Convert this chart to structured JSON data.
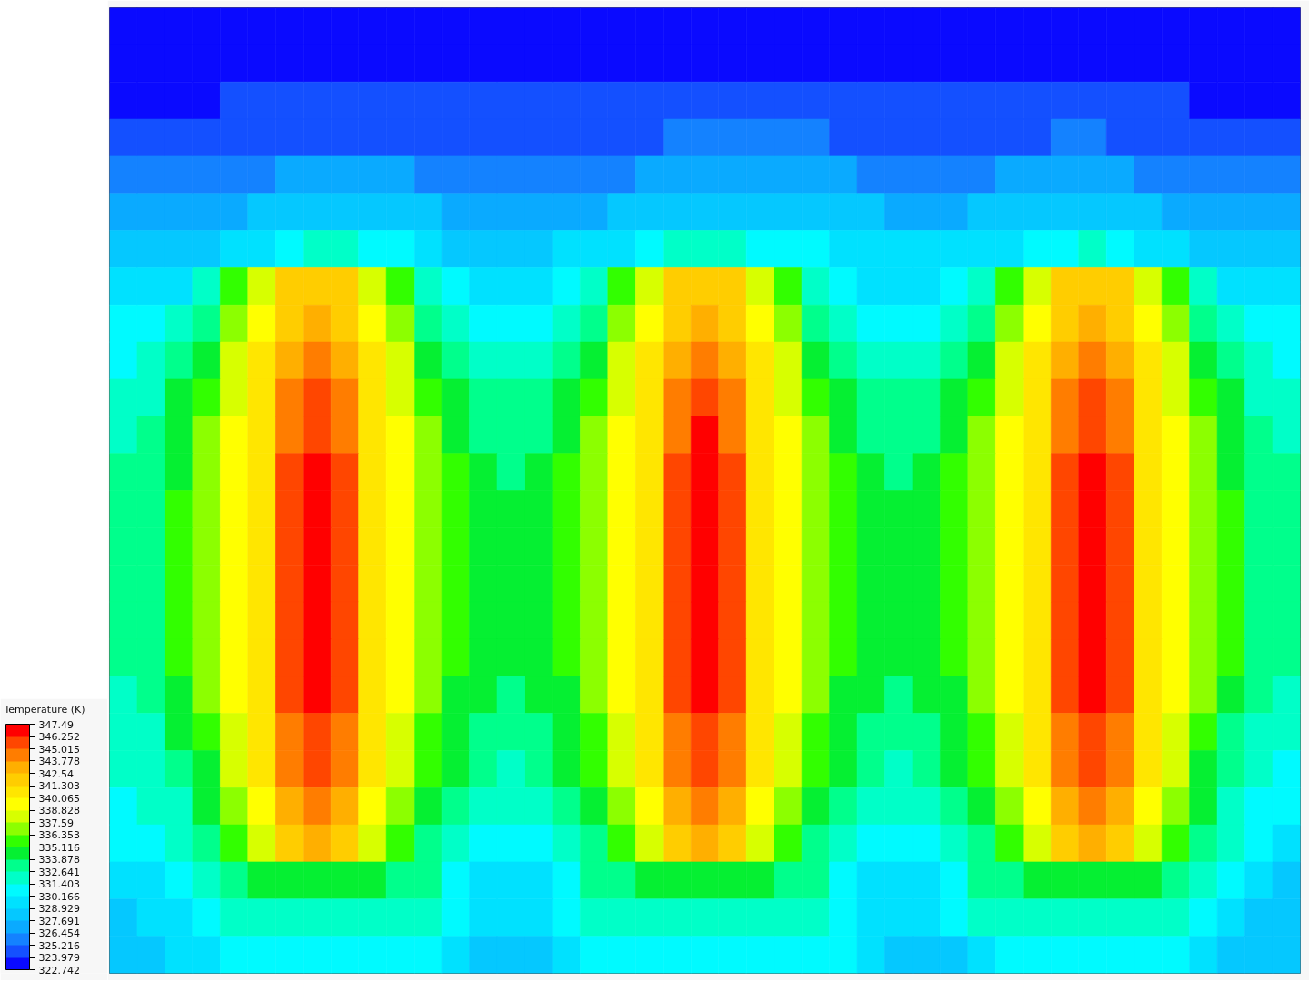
{
  "chart_data": {
    "type": "heatmap",
    "clabel": "Temperature (K)",
    "tick_labels": false,
    "categories": [
      null,
      null,
      null,
      null,
      null,
      null,
      null,
      null,
      null,
      null,
      null,
      null,
      null,
      null,
      null,
      null,
      null,
      null,
      null,
      null,
      null,
      null,
      null,
      null,
      null,
      null,
      null,
      null,
      null,
      null,
      null,
      null,
      null,
      null,
      null,
      null,
      null,
      null,
      null,
      null,
      null,
      null,
      null
    ],
    "y_categories": [
      null,
      null,
      null,
      null,
      null,
      null,
      null,
      null,
      null,
      null,
      null,
      null,
      null,
      null,
      null,
      null,
      null,
      null,
      null,
      null,
      null,
      null,
      null,
      null,
      null,
      null
    ],
    "clim": [
      322.742,
      347.49
    ],
    "cticks": [
      322.742,
      323.979,
      325.216,
      326.454,
      327.691,
      328.929,
      330.166,
      331.403,
      332.641,
      333.878,
      335.116,
      336.353,
      337.59,
      338.828,
      340.065,
      341.303,
      342.54,
      343.778,
      345.015,
      346.252,
      347.49
    ],
    "colors": [
      "#0a0aff",
      "#1450ff",
      "#1482ff",
      "#0aaaff",
      "#05c8ff",
      "#00e1ff",
      "#00faff",
      "#00ffc8",
      "#00ff8c",
      "#05f032",
      "#32ff00",
      "#8cff00",
      "#d7ff00",
      "#ffff00",
      "#ffe600",
      "#ffcd00",
      "#ffaf00",
      "#ff7d00",
      "#ff4600",
      "#ff0000"
    ],
    "cells": [
      [
        323.4,
        323.4,
        323.4,
        323.4,
        323.4,
        323.4,
        323.4,
        323.4,
        323.4,
        323.4,
        323.4,
        323.4,
        323.4,
        323.4,
        323.4,
        323.4,
        323.4,
        323.4,
        323.4,
        323.4,
        323.4,
        323.4,
        323.4,
        323.4,
        323.4,
        323.4,
        323.4,
        323.4,
        323.4,
        323.4,
        323.4,
        323.4,
        323.4,
        323.4,
        323.4,
        323.4,
        323.4,
        323.4,
        323.4,
        323.4,
        323.4,
        323.4,
        323.4
      ],
      [
        323.4,
        323.4,
        323.4,
        323.4,
        323.4,
        323.4,
        323.4,
        323.4,
        323.4,
        323.4,
        323.4,
        323.4,
        323.4,
        323.4,
        323.4,
        323.4,
        323.4,
        323.4,
        323.4,
        323.4,
        323.4,
        323.4,
        323.4,
        323.4,
        323.4,
        323.4,
        323.4,
        323.4,
        323.4,
        323.4,
        323.4,
        323.4,
        323.4,
        323.4,
        323.4,
        323.4,
        323.4,
        323.4,
        323.4,
        323.4,
        323.4,
        323.4,
        323.4
      ],
      [
        323.4,
        323.4,
        323.4,
        323.4,
        324.6,
        324.6,
        324.6,
        324.6,
        324.6,
        324.6,
        324.6,
        324.6,
        324.6,
        324.6,
        324.6,
        324.6,
        324.6,
        324.6,
        324.6,
        324.6,
        324.6,
        324.6,
        324.6,
        324.6,
        324.6,
        324.6,
        324.6,
        324.6,
        324.6,
        324.6,
        324.6,
        324.6,
        324.6,
        324.6,
        324.6,
        324.6,
        324.6,
        324.6,
        324.6,
        323.4,
        323.4,
        323.4,
        323.4
      ],
      [
        324.6,
        324.6,
        324.6,
        324.6,
        324.6,
        324.6,
        324.6,
        324.6,
        324.6,
        324.6,
        324.6,
        324.6,
        324.6,
        324.6,
        324.6,
        324.6,
        324.6,
        324.6,
        324.6,
        324.6,
        325.8,
        325.8,
        325.8,
        325.8,
        325.8,
        325.8,
        324.6,
        324.6,
        324.6,
        324.6,
        324.6,
        324.6,
        324.6,
        324.6,
        325.8,
        325.8,
        324.6,
        324.6,
        324.6,
        324.6,
        324.6,
        324.6,
        324.6
      ],
      [
        325.8,
        325.8,
        325.8,
        325.8,
        325.8,
        325.8,
        327.1,
        327.1,
        327.1,
        327.1,
        327.1,
        325.8,
        325.8,
        325.8,
        325.8,
        325.8,
        325.8,
        325.8,
        325.8,
        327.1,
        327.1,
        327.1,
        327.1,
        327.1,
        327.1,
        327.1,
        327.1,
        325.8,
        325.8,
        325.8,
        325.8,
        325.8,
        327.1,
        327.1,
        327.1,
        327.1,
        327.1,
        325.8,
        325.8,
        325.8,
        325.8,
        325.8,
        325.8
      ],
      [
        327.1,
        327.1,
        327.1,
        327.1,
        327.1,
        328.3,
        328.3,
        328.3,
        328.3,
        328.3,
        328.3,
        328.3,
        327.1,
        327.1,
        327.1,
        327.1,
        327.1,
        327.1,
        328.3,
        328.3,
        328.3,
        328.3,
        328.3,
        328.3,
        328.3,
        328.3,
        328.3,
        328.3,
        327.1,
        327.1,
        327.1,
        328.3,
        328.3,
        328.3,
        328.3,
        328.3,
        328.3,
        328.3,
        327.1,
        327.1,
        327.1,
        327.1,
        327.1
      ],
      [
        328.3,
        328.3,
        328.3,
        328.3,
        329.5,
        329.5,
        330.8,
        332,
        332,
        330.8,
        330.8,
        329.5,
        328.3,
        328.3,
        328.3,
        328.3,
        329.5,
        329.5,
        329.5,
        330.8,
        332,
        332,
        332,
        330.8,
        330.8,
        330.8,
        329.5,
        329.5,
        329.5,
        329.5,
        329.5,
        329.5,
        329.5,
        330.8,
        330.8,
        332,
        330.8,
        329.5,
        329.5,
        328.3,
        328.3,
        328.3,
        328.3
      ],
      [
        329.5,
        329.5,
        329.5,
        332,
        335.7,
        338.2,
        341.9,
        341.9,
        341.9,
        338.2,
        335.7,
        332,
        330.8,
        329.5,
        329.5,
        329.5,
        330.8,
        332,
        335.7,
        338.2,
        341.9,
        341.9,
        341.9,
        338.2,
        335.7,
        332,
        330.8,
        329.5,
        329.5,
        329.5,
        330.8,
        332,
        335.7,
        338.2,
        341.9,
        341.9,
        341.9,
        338.2,
        335.7,
        332,
        329.5,
        329.5,
        329.5
      ],
      [
        330.8,
        330.8,
        332,
        333.3,
        337,
        339.4,
        341.9,
        343.2,
        341.9,
        339.4,
        337,
        333.3,
        332,
        330.8,
        330.8,
        330.8,
        332,
        333.3,
        337,
        339.4,
        341.9,
        343.2,
        341.9,
        339.4,
        337,
        333.3,
        332,
        330.8,
        330.8,
        330.8,
        332,
        333.3,
        337,
        339.4,
        341.9,
        343.2,
        341.9,
        339.4,
        337,
        333.3,
        332,
        330.8,
        330.8
      ],
      [
        330.8,
        332,
        333.3,
        334.5,
        338.2,
        340.7,
        343.2,
        344.4,
        343.2,
        340.7,
        338.2,
        334.5,
        333.3,
        332,
        332,
        332,
        333.3,
        334.5,
        338.2,
        340.7,
        343.2,
        344.4,
        343.2,
        340.7,
        338.2,
        334.5,
        333.3,
        332,
        332,
        332,
        333.3,
        334.5,
        338.2,
        340.7,
        343.2,
        344.4,
        343.2,
        340.7,
        338.2,
        334.5,
        333.3,
        332,
        330.8
      ],
      [
        332,
        332,
        334.5,
        335.7,
        338.2,
        340.7,
        344.4,
        345.6,
        344.4,
        340.7,
        338.2,
        335.7,
        334.5,
        333.3,
        333.3,
        333.3,
        334.5,
        335.7,
        338.2,
        340.7,
        344.4,
        345.6,
        344.4,
        340.7,
        338.2,
        335.7,
        334.5,
        333.3,
        333.3,
        333.3,
        334.5,
        335.7,
        338.2,
        340.7,
        344.4,
        345.6,
        344.4,
        340.7,
        338.2,
        335.7,
        334.5,
        332,
        332
      ],
      [
        332,
        333.3,
        334.5,
        337,
        339.4,
        340.7,
        344.4,
        345.6,
        344.4,
        340.7,
        339.4,
        337,
        334.5,
        333.3,
        333.3,
        333.3,
        334.5,
        337,
        339.4,
        340.7,
        344.4,
        346.9,
        344.4,
        340.7,
        339.4,
        337,
        334.5,
        333.3,
        333.3,
        333.3,
        334.5,
        337,
        339.4,
        340.7,
        344.4,
        345.6,
        344.4,
        340.7,
        339.4,
        337,
        334.5,
        333.3,
        332
      ],
      [
        333.3,
        333.3,
        334.5,
        337,
        339.4,
        340.7,
        345.6,
        346.9,
        345.6,
        340.7,
        339.4,
        337,
        335.7,
        334.5,
        333.3,
        334.5,
        335.7,
        337,
        339.4,
        340.7,
        345.6,
        346.9,
        345.6,
        340.7,
        339.4,
        337,
        335.7,
        334.5,
        333.3,
        334.5,
        335.7,
        337,
        339.4,
        340.7,
        345.6,
        346.9,
        345.6,
        340.7,
        339.4,
        337,
        334.5,
        333.3,
        333.3
      ],
      [
        333.3,
        333.3,
        335.7,
        337,
        339.4,
        340.7,
        345.6,
        346.9,
        345.6,
        340.7,
        339.4,
        337,
        335.7,
        334.5,
        334.5,
        334.5,
        335.7,
        337,
        339.4,
        340.7,
        345.6,
        346.9,
        345.6,
        340.7,
        339.4,
        337,
        335.7,
        334.5,
        334.5,
        334.5,
        335.7,
        337,
        339.4,
        340.7,
        345.6,
        346.9,
        345.6,
        340.7,
        339.4,
        337,
        335.7,
        333.3,
        333.3
      ],
      [
        333.3,
        333.3,
        335.7,
        337,
        339.4,
        340.7,
        345.6,
        346.9,
        345.6,
        340.7,
        339.4,
        337,
        335.7,
        334.5,
        334.5,
        334.5,
        335.7,
        337,
        339.4,
        340.7,
        345.6,
        346.9,
        345.6,
        340.7,
        339.4,
        337,
        335.7,
        334.5,
        334.5,
        334.5,
        335.7,
        337,
        339.4,
        340.7,
        345.6,
        346.9,
        345.6,
        340.7,
        339.4,
        337,
        335.7,
        333.3,
        333.3
      ],
      [
        333.3,
        333.3,
        335.7,
        337,
        339.4,
        340.7,
        345.6,
        346.9,
        345.6,
        340.7,
        339.4,
        337,
        335.7,
        334.5,
        334.5,
        334.5,
        335.7,
        337,
        339.4,
        340.7,
        345.6,
        346.9,
        345.6,
        340.7,
        339.4,
        337,
        335.7,
        334.5,
        334.5,
        334.5,
        335.7,
        337,
        339.4,
        340.7,
        345.6,
        346.9,
        345.6,
        340.7,
        339.4,
        337,
        335.7,
        333.3,
        333.3
      ],
      [
        333.3,
        333.3,
        335.7,
        337,
        339.4,
        340.7,
        345.6,
        346.9,
        345.6,
        340.7,
        339.4,
        337,
        335.7,
        334.5,
        334.5,
        334.5,
        335.7,
        337,
        339.4,
        340.7,
        345.6,
        346.9,
        345.6,
        340.7,
        339.4,
        337,
        335.7,
        334.5,
        334.5,
        334.5,
        335.7,
        337,
        339.4,
        340.7,
        345.6,
        346.9,
        345.6,
        340.7,
        339.4,
        337,
        335.7,
        333.3,
        333.3
      ],
      [
        333.3,
        333.3,
        335.7,
        337,
        339.4,
        340.7,
        345.6,
        346.9,
        345.6,
        340.7,
        339.4,
        337,
        335.7,
        334.5,
        334.5,
        334.5,
        335.7,
        337,
        339.4,
        340.7,
        345.6,
        346.9,
        345.6,
        340.7,
        339.4,
        337,
        335.7,
        334.5,
        334.5,
        334.5,
        335.7,
        337,
        339.4,
        340.7,
        345.6,
        346.9,
        345.6,
        340.7,
        339.4,
        337,
        335.7,
        333.3,
        333.3
      ],
      [
        332,
        333.3,
        334.5,
        337,
        339.4,
        340.7,
        345.6,
        346.9,
        345.6,
        340.7,
        339.4,
        337,
        334.5,
        334.5,
        333.3,
        334.5,
        334.5,
        337,
        339.4,
        340.7,
        345.6,
        346.9,
        345.6,
        340.7,
        339.4,
        337,
        334.5,
        334.5,
        333.3,
        334.5,
        334.5,
        337,
        339.4,
        340.7,
        345.6,
        346.9,
        345.6,
        340.7,
        339.4,
        337,
        334.5,
        333.3,
        332
      ],
      [
        332,
        332,
        334.5,
        335.7,
        338.2,
        340.7,
        344.4,
        345.6,
        344.4,
        340.7,
        338.2,
        335.7,
        334.5,
        333.3,
        333.3,
        333.3,
        334.5,
        335.7,
        338.2,
        340.7,
        344.4,
        345.6,
        344.4,
        340.7,
        338.2,
        335.7,
        334.5,
        333.3,
        333.3,
        333.3,
        334.5,
        335.7,
        338.2,
        340.7,
        344.4,
        345.6,
        344.4,
        340.7,
        338.2,
        335.7,
        333.3,
        332,
        332
      ],
      [
        332,
        332,
        333.3,
        334.5,
        338.2,
        340.7,
        344.4,
        345.6,
        344.4,
        340.7,
        338.2,
        335.7,
        334.5,
        333.3,
        332,
        333.3,
        334.5,
        335.7,
        338.2,
        340.7,
        344.4,
        345.6,
        344.4,
        340.7,
        338.2,
        335.7,
        334.5,
        333.3,
        332,
        333.3,
        334.5,
        335.7,
        338.2,
        340.7,
        344.4,
        345.6,
        344.4,
        340.7,
        338.2,
        334.5,
        333.3,
        332,
        330.8
      ],
      [
        330.8,
        332,
        332,
        334.5,
        337,
        339.4,
        343.2,
        344.4,
        343.2,
        339.4,
        337,
        334.5,
        333.3,
        332,
        332,
        332,
        333.3,
        334.5,
        337,
        339.4,
        343.2,
        344.4,
        343.2,
        339.4,
        337,
        334.5,
        333.3,
        332,
        332,
        332,
        333.3,
        334.5,
        337,
        339.4,
        343.2,
        344.4,
        343.2,
        339.4,
        337,
        334.5,
        332,
        330.8,
        330.8
      ],
      [
        330.8,
        330.8,
        332,
        333.3,
        335.7,
        338.2,
        341.9,
        343.2,
        341.9,
        338.2,
        335.7,
        333.3,
        332,
        330.8,
        330.8,
        330.8,
        332,
        333.3,
        335.7,
        338.2,
        341.9,
        343.2,
        341.9,
        338.2,
        335.7,
        333.3,
        332,
        330.8,
        330.8,
        330.8,
        332,
        333.3,
        335.7,
        338.2,
        341.9,
        343.2,
        341.9,
        338.2,
        335.7,
        333.3,
        332,
        330.8,
        329.5
      ],
      [
        329.5,
        329.5,
        330.8,
        332,
        333.3,
        334.5,
        334.5,
        334.5,
        334.5,
        334.5,
        333.3,
        333.3,
        330.8,
        329.5,
        329.5,
        329.5,
        330.8,
        333.3,
        333.3,
        334.5,
        334.5,
        334.5,
        334.5,
        334.5,
        333.3,
        333.3,
        330.8,
        329.5,
        329.5,
        329.5,
        330.8,
        333.3,
        333.3,
        334.5,
        334.5,
        334.5,
        334.5,
        334.5,
        333.3,
        332,
        330.8,
        329.5,
        328.3
      ],
      [
        328.3,
        329.5,
        329.5,
        330.8,
        332,
        332,
        332,
        332,
        332,
        332,
        332,
        332,
        330.8,
        329.5,
        329.5,
        329.5,
        330.8,
        332,
        332,
        332,
        332,
        332,
        332,
        332,
        332,
        332,
        330.8,
        329.5,
        329.5,
        329.5,
        330.8,
        332,
        332,
        332,
        332,
        332,
        332,
        332,
        332,
        330.8,
        329.5,
        328.3,
        328.3
      ],
      [
        328.3,
        328.3,
        329.5,
        329.5,
        330.8,
        330.8,
        330.8,
        330.8,
        330.8,
        330.8,
        330.8,
        330.8,
        329.5,
        328.3,
        328.3,
        328.3,
        329.5,
        330.8,
        330.8,
        330.8,
        330.8,
        330.8,
        330.8,
        330.8,
        330.8,
        330.8,
        330.8,
        329.5,
        328.3,
        328.3,
        328.3,
        329.5,
        330.8,
        330.8,
        330.8,
        330.8,
        330.8,
        330.8,
        330.8,
        329.5,
        328.3,
        328.3,
        328.3
      ]
    ]
  }
}
